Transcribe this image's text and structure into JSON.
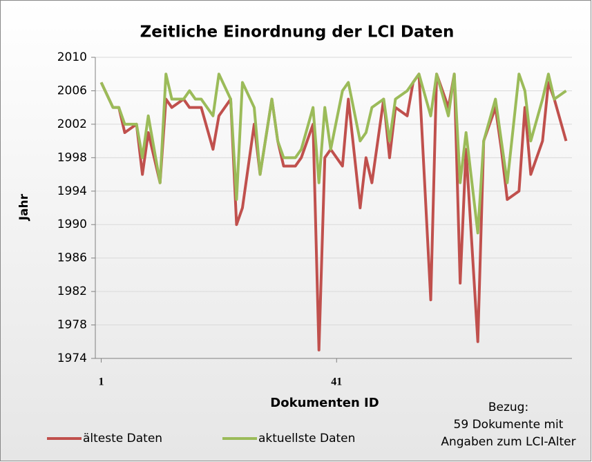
{
  "chart_data": {
    "type": "line",
    "title": "Zeitliche Einordnung  der LCI Daten",
    "xlabel": "Dokumenten ID",
    "ylabel": "Jahr",
    "annotation": [
      "Bezug:",
      "59 Dokumente mit",
      "Angaben zum LCI-Alter"
    ],
    "x": [
      1,
      3,
      4,
      5,
      7,
      8,
      9,
      11,
      12,
      13,
      15,
      16,
      17,
      18,
      20,
      21,
      23,
      24,
      25,
      27,
      28,
      30,
      31,
      32,
      34,
      35,
      37,
      38,
      39,
      40,
      42,
      43,
      45,
      46,
      47,
      49,
      50,
      51,
      53,
      54,
      55,
      57,
      58,
      60,
      61,
      62,
      63,
      65,
      66,
      68,
      69,
      70,
      72,
      73,
      74,
      76,
      77,
      78,
      80
    ],
    "xlim": [
      0,
      81
    ],
    "xticks": [
      1,
      41
    ],
    "ylim": [
      1974,
      2010
    ],
    "yticks": [
      1974,
      1978,
      1982,
      1986,
      1990,
      1994,
      1998,
      2002,
      2006,
      2010
    ],
    "grid": true,
    "series": [
      {
        "name": "älteste Daten",
        "color": "#c0504d",
        "values": [
          2007,
          2004,
          2004,
          2001,
          2002,
          1996,
          2001,
          1995,
          2005,
          2004,
          2005,
          2004,
          2004,
          2004,
          1999,
          2003,
          2005,
          1990,
          1992,
          2002,
          1996,
          2005,
          2000,
          1997,
          1997,
          1998,
          2002,
          1975,
          1998,
          1999,
          1997,
          2005,
          1992,
          1998,
          1995,
          2005,
          1998,
          2004,
          2003,
          2007,
          2008,
          1981,
          2008,
          2004,
          2008,
          1983,
          1999,
          1976,
          2000,
          2004,
          1999,
          1993,
          1994,
          2004,
          1996,
          2000,
          2007,
          2005,
          2000
        ]
      },
      {
        "name": "aktuellste Daten",
        "color": "#9bbb59",
        "values": [
          2007,
          2004,
          2004,
          2002,
          2002,
          1998,
          2003,
          1995,
          2008,
          2005,
          2005,
          2006,
          2005,
          2005,
          2003,
          2008,
          2005,
          1993,
          2007,
          2004,
          1996,
          2005,
          2000,
          1998,
          1998,
          1999,
          2004,
          1995,
          2004,
          1999,
          2006,
          2007,
          2000,
          2001,
          2004,
          2005,
          2000,
          2005,
          2006,
          2007,
          2008,
          2003,
          2008,
          2003,
          2008,
          1995,
          2001,
          1989,
          2000,
          2005,
          2000,
          1995,
          2008,
          2006,
          2000,
          2005,
          2008,
          2005,
          2006
        ]
      }
    ]
  }
}
